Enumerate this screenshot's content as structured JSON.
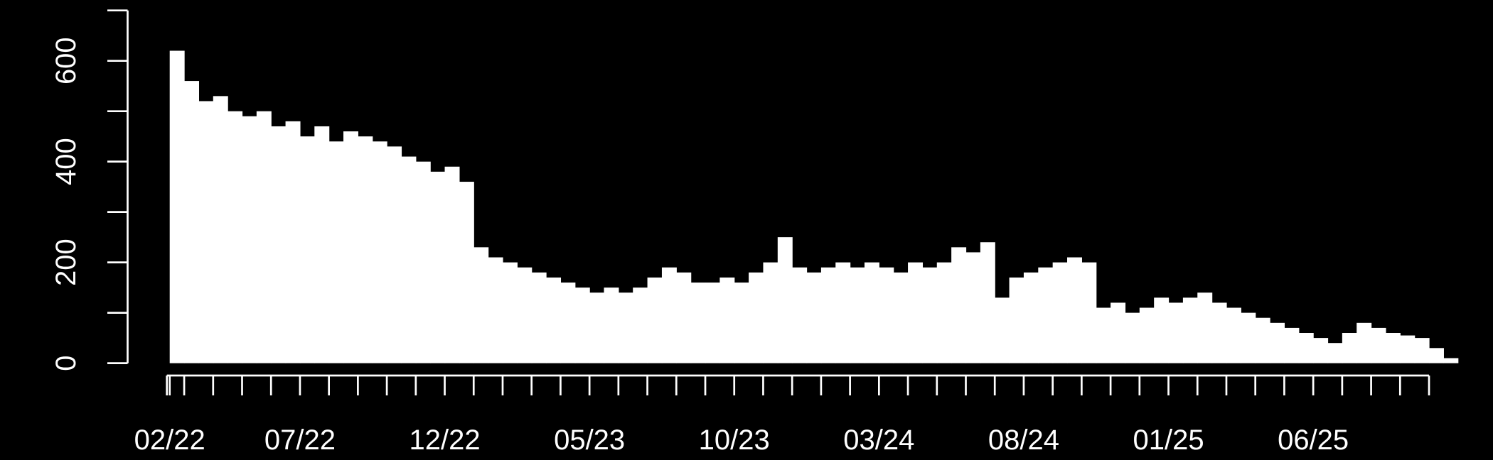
{
  "chart_data": {
    "type": "bar",
    "background": "#000000",
    "color": "#ffffff",
    "categories": [
      "02/22",
      null,
      null,
      null,
      null,
      null,
      null,
      null,
      null,
      "07/22",
      null,
      null,
      null,
      null,
      null,
      null,
      null,
      null,
      null,
      "12/22",
      null,
      null,
      null,
      null,
      null,
      null,
      null,
      null,
      null,
      "05/23",
      null,
      null,
      null,
      null,
      null,
      null,
      null,
      null,
      null,
      "10/23",
      null,
      null,
      null,
      null,
      null,
      null,
      null,
      null,
      null,
      "03/24",
      null,
      null,
      null,
      null,
      null,
      null,
      null,
      null,
      null,
      "08/24",
      null,
      null,
      null,
      null,
      null,
      null,
      null,
      null,
      null,
      "01/25",
      null,
      null,
      null,
      null,
      null,
      null,
      null,
      null,
      null,
      "06/25",
      null,
      null,
      null,
      null,
      null,
      null,
      null,
      null,
      null
    ],
    "values": [
      620,
      560,
      520,
      530,
      500,
      490,
      500,
      470,
      480,
      450,
      470,
      440,
      460,
      450,
      440,
      430,
      410,
      400,
      380,
      390,
      360,
      230,
      210,
      200,
      190,
      180,
      170,
      160,
      150,
      140,
      150,
      140,
      150,
      170,
      190,
      180,
      160,
      160,
      170,
      160,
      180,
      200,
      250,
      190,
      180,
      190,
      200,
      190,
      200,
      190,
      180,
      200,
      190,
      200,
      230,
      220,
      240,
      130,
      170,
      180,
      190,
      200,
      210,
      200,
      110,
      120,
      100,
      110,
      130,
      120,
      130,
      140,
      120,
      110,
      100,
      90,
      80,
      70,
      60,
      50,
      40,
      60,
      80,
      70,
      60,
      55,
      50,
      30,
      10
    ],
    "ylim": [
      0,
      700
    ],
    "yticks": [
      0,
      200,
      400,
      600
    ],
    "yminor_ticks": [
      100,
      300,
      500,
      700
    ]
  }
}
